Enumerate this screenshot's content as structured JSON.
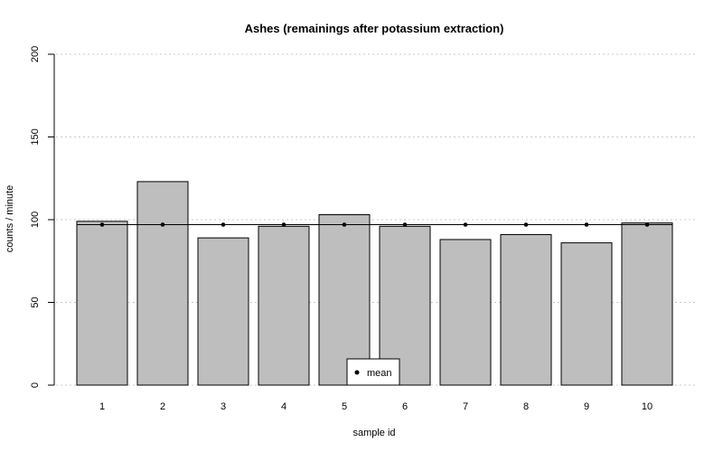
{
  "chart_data": {
    "type": "bar",
    "title": "Ashes (remainings after potassium extraction)",
    "xlabel": "sample id",
    "ylabel": "counts / minute",
    "categories": [
      "1",
      "2",
      "3",
      "4",
      "5",
      "6",
      "7",
      "8",
      "9",
      "10"
    ],
    "values": [
      99,
      123,
      89,
      96,
      103,
      96,
      88,
      91,
      86,
      98
    ],
    "mean": 97,
    "ylim": [
      0,
      200
    ],
    "yticks": [
      "0",
      "50",
      "100",
      "150",
      "200"
    ],
    "grid": "horizontal dotted",
    "legend": {
      "label": "mean",
      "position": "bottom-center"
    },
    "colors": {
      "bar_fill": "#bebebe",
      "bar_stroke": "#000000",
      "grid": "#c8c8c8",
      "mean": "#000000"
    }
  }
}
